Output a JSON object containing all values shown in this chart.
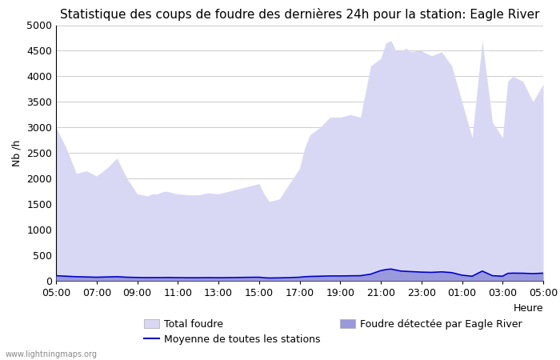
{
  "title": "Statistique des coups de foudre des dernières 24h pour la station: Eagle River",
  "xlabel": "Heure",
  "ylabel": "Nb /h",
  "watermark": "www.lightningmaps.org",
  "ylim": [
    0,
    5000
  ],
  "yticks": [
    0,
    500,
    1000,
    1500,
    2000,
    2500,
    3000,
    3500,
    4000,
    4500,
    5000
  ],
  "xtick_labels": [
    "05:00",
    "07:00",
    "09:00",
    "11:00",
    "13:00",
    "15:00",
    "17:00",
    "19:00",
    "21:00",
    "23:00",
    "01:00",
    "03:00",
    "05:00"
  ],
  "background_color": "#ffffff",
  "grid_color": "#cccccc",
  "fill_total_color": "#d8d8f5",
  "fill_station_color": "#9999dd",
  "mean_line_color": "#0000cc",
  "title_fontsize": 11,
  "label_fontsize": 9,
  "tick_fontsize": 9,
  "x_hours": [
    5,
    5.5,
    6,
    6.5,
    7,
    7.5,
    8,
    8.5,
    9,
    9.25,
    9.5,
    9.75,
    10,
    10.25,
    10.5,
    10.75,
    11,
    11.5,
    12,
    12.5,
    13,
    13.5,
    14,
    14.5,
    15,
    15.25,
    15.5,
    16,
    16.5,
    17,
    17.25,
    17.5,
    18,
    18.5,
    19,
    19.5,
    20,
    20.5,
    21,
    21.25,
    21.5,
    21.75,
    22,
    22.25,
    22.5,
    22.75,
    23,
    23.5,
    24,
    24.5,
    25,
    25.5,
    26,
    26.5,
    27,
    27.25,
    27.5,
    28,
    28.5,
    29
  ],
  "total_foudre": [
    3000,
    2600,
    2100,
    2150,
    2050,
    2200,
    2400,
    2000,
    1700,
    1680,
    1660,
    1700,
    1700,
    1740,
    1750,
    1720,
    1700,
    1680,
    1680,
    1720,
    1700,
    1750,
    1800,
    1850,
    1900,
    1700,
    1550,
    1600,
    1900,
    2200,
    2600,
    2850,
    3000,
    3200,
    3200,
    3250,
    3200,
    4200,
    4350,
    4650,
    4700,
    4500,
    4500,
    4550,
    4480,
    4500,
    4500,
    4400,
    4480,
    4200,
    3500,
    2800,
    4700,
    3100,
    2800,
    3900,
    4000,
    3900,
    3500,
    3850
  ],
  "station_foudre": [
    100,
    90,
    80,
    75,
    70,
    75,
    80,
    70,
    65,
    63,
    62,
    63,
    62,
    63,
    65,
    63,
    62,
    60,
    60,
    62,
    60,
    62,
    65,
    68,
    70,
    60,
    55,
    58,
    62,
    70,
    80,
    85,
    90,
    95,
    95,
    98,
    100,
    130,
    200,
    220,
    230,
    210,
    190,
    185,
    180,
    175,
    170,
    165,
    175,
    160,
    110,
    90,
    190,
    100,
    90,
    145,
    150,
    148,
    140,
    150
  ],
  "mean_line": [
    100,
    90,
    80,
    75,
    70,
    75,
    80,
    70,
    65,
    63,
    62,
    63,
    62,
    63,
    65,
    63,
    62,
    60,
    60,
    62,
    60,
    62,
    65,
    68,
    70,
    60,
    55,
    58,
    62,
    70,
    80,
    85,
    90,
    95,
    95,
    98,
    100,
    130,
    200,
    220,
    230,
    210,
    190,
    185,
    180,
    175,
    170,
    165,
    175,
    160,
    110,
    90,
    190,
    100,
    90,
    145,
    150,
    148,
    140,
    150
  ],
  "legend_total_label": "Total foudre",
  "legend_mean_label": "Moyenne de toutes les stations",
  "legend_station_label": "Foudre détectée par Eagle River"
}
